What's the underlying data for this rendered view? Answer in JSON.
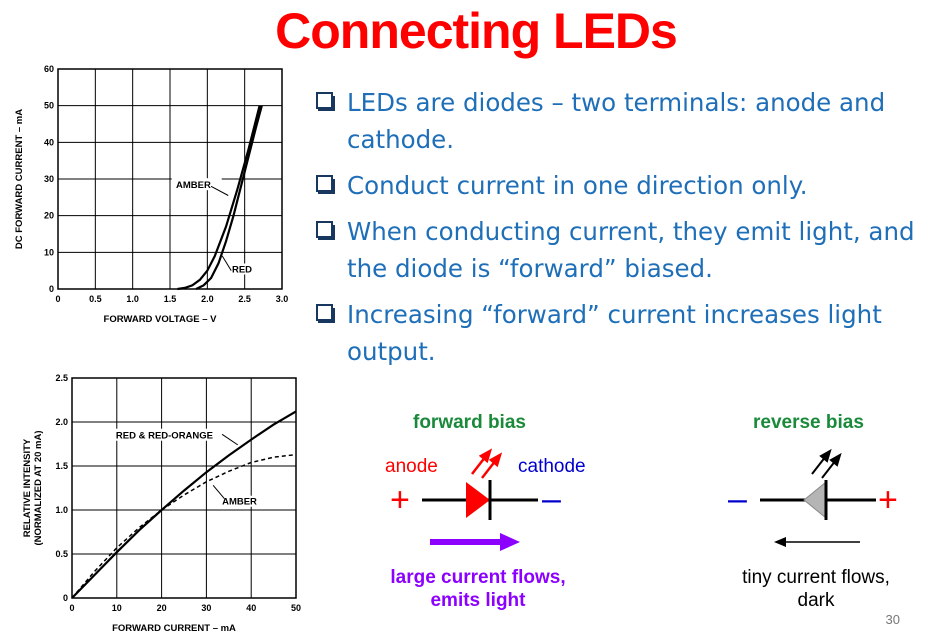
{
  "title": "Connecting LEDs",
  "bullets": [
    "LEDs are diodes – two terminals: anode and cathode.",
    "Conduct current in one direction only.",
    "When conducting current, they emit light, and the diode is “forward” biased.",
    "Increasing “forward” current increases light output."
  ],
  "diagram": {
    "forward_title": "forward bias",
    "reverse_title": "reverse bias",
    "anode_label": "anode",
    "cathode_label": "cathode",
    "plus_sign": "+",
    "minus_sign": "–",
    "forward_caption_1": "large current flows,",
    "forward_caption_2": "emits light",
    "reverse_caption_1": "tiny current flows,",
    "reverse_caption_2": "dark",
    "colors": {
      "forward_title": "#1a8a3a",
      "anode": "#ff0000",
      "cathode": "#0000cc",
      "led_forward": "#ff0000",
      "led_reverse": "#b5b5b5",
      "arrow_forward": "#8b00ff",
      "caption_forward": "#8b00ff"
    }
  },
  "page_number": "30",
  "chart_data": [
    {
      "type": "line",
      "xlabel": "FORWARD VOLTAGE – V",
      "ylabel": "DC FORWARD CURRENT – mA",
      "xlim": [
        0,
        3.0
      ],
      "ylim": [
        0,
        60
      ],
      "xticks": [
        0,
        0.5,
        1.0,
        1.5,
        2.0,
        2.5,
        3.0
      ],
      "xtick_labels": [
        "0",
        "0.5",
        "1.0",
        "1.5",
        "2.0",
        "2.5",
        "3.0"
      ],
      "yticks": [
        0,
        10,
        20,
        30,
        40,
        50,
        60
      ],
      "ytick_labels": [
        "0",
        "10",
        "20",
        "30",
        "40",
        "50",
        "60"
      ],
      "grid": true,
      "series": [
        {
          "name": "AMBER",
          "x": [
            1.85,
            1.95,
            2.05,
            2.15,
            2.25,
            2.35,
            2.5,
            2.65,
            2.73
          ],
          "y": [
            0,
            1,
            3,
            7,
            13,
            20,
            32,
            44,
            50
          ]
        },
        {
          "name": "RED",
          "x": [
            1.6,
            1.7,
            1.8,
            1.9,
            2.0,
            2.1,
            2.25,
            2.4,
            2.55,
            2.7
          ],
          "y": [
            0,
            0.3,
            1,
            2.5,
            5,
            9,
            17,
            27,
            38,
            50
          ]
        }
      ],
      "annotations": [
        "AMBER",
        "RED"
      ]
    },
    {
      "type": "line",
      "xlabel": "FORWARD CURRENT – mA",
      "ylabel": "RELATIVE INTENSITY (NORMALIZED AT 20 mA)",
      "xlim": [
        0,
        50
      ],
      "ylim": [
        0,
        2.5
      ],
      "xticks": [
        0,
        10,
        20,
        30,
        40,
        50
      ],
      "xtick_labels": [
        "0",
        "10",
        "20",
        "30",
        "40",
        "50"
      ],
      "yticks": [
        0,
        0.5,
        1.0,
        1.5,
        2.0,
        2.5
      ],
      "ytick_labels": [
        "0",
        "0.5",
        "1.0",
        "1.5",
        "2.0",
        "2.5"
      ],
      "grid": true,
      "series": [
        {
          "name": "RED & RED-ORANGE",
          "style": "solid",
          "x": [
            0,
            5,
            10,
            15,
            20,
            25,
            30,
            35,
            40,
            45,
            50
          ],
          "y": [
            0,
            0.26,
            0.52,
            0.77,
            1.0,
            1.22,
            1.43,
            1.62,
            1.8,
            1.97,
            2.12
          ]
        },
        {
          "name": "AMBER",
          "style": "dashed",
          "x": [
            0,
            5,
            10,
            15,
            20,
            25,
            30,
            35,
            40,
            45,
            50
          ],
          "y": [
            0,
            0.3,
            0.57,
            0.8,
            1.0,
            1.17,
            1.32,
            1.44,
            1.54,
            1.6,
            1.63
          ]
        }
      ],
      "annotations": [
        "RED & RED-ORANGE",
        "AMBER"
      ]
    }
  ]
}
